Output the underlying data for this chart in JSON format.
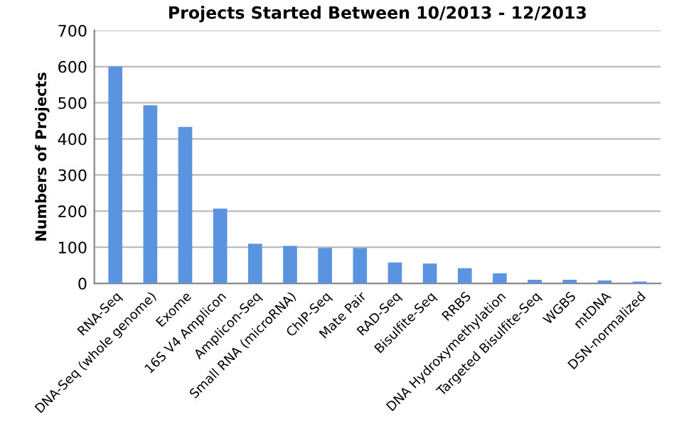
{
  "chart_data": {
    "type": "bar",
    "title": "Projects Started Between 10/2013 - 12/2013",
    "ylabel": "Numbers of Projects",
    "categories": [
      "RNA-Seq",
      "DNA-Seq (whole genome)",
      "Exome",
      "16S V4 Amplicon",
      "Amplicon-Seq",
      "Small RNA (microRNA)",
      "ChIP-Seq",
      "Mate Pair",
      "RAD-Seq",
      "Bisulfite-Seq",
      "RRBS",
      "DNA Hydroxymethylation",
      "Targeted Bisulfite-Seq",
      "WGBS",
      "mtDNA",
      "DSN-normalized"
    ],
    "values": [
      600,
      493,
      433,
      207,
      110,
      104,
      98,
      98,
      58,
      55,
      42,
      28,
      10,
      10,
      8,
      5
    ],
    "color": "#5a93e0",
    "ylim": [
      0,
      700
    ],
    "yticks": [
      0,
      100,
      200,
      300,
      400,
      500,
      600,
      700
    ],
    "grid": "y"
  }
}
